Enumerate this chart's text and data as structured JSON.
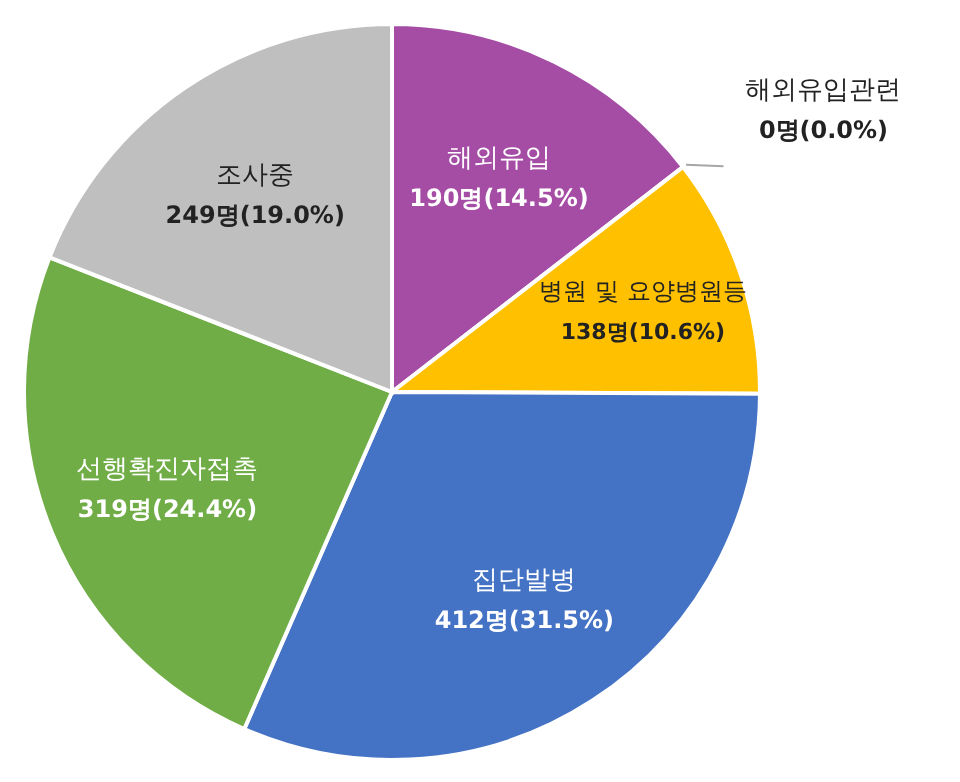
{
  "chart_data": {
    "type": "pie",
    "categories": [
      "해외유입",
      "해외유입관련",
      "병원 및 요양병원등",
      "집단발병",
      "선행확진자접촉",
      "조사중"
    ],
    "values": [
      190,
      0,
      138,
      412,
      319,
      249
    ],
    "value_labels": [
      "190명(14.5%)",
      "0명(0.0%)",
      "138명(10.6%)",
      "412명(31.5%)",
      "319명(24.4%)",
      "249명(19.0%)"
    ],
    "colors": [
      "#a54ca5",
      "#ed7d31",
      "#ffc000",
      "#4472c4",
      "#70ad47",
      "#bfbfbf"
    ]
  }
}
